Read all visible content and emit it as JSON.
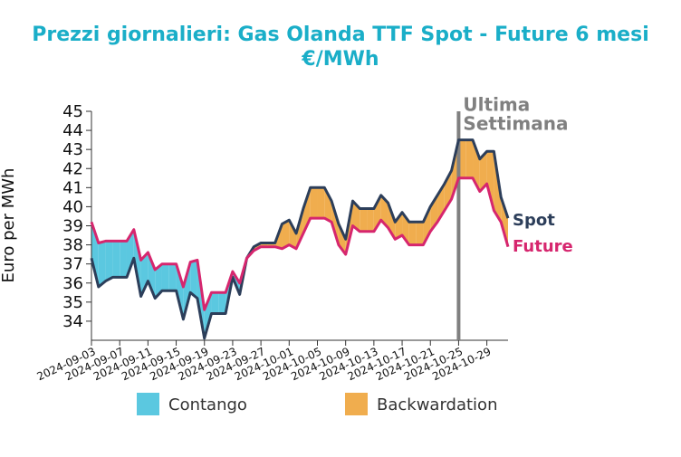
{
  "chart_data": {
    "type": "line",
    "title": "Prezzi giornalieri: Gas Olanda TTF Spot - Future 6 mesi",
    "subtitle": "€/MWh",
    "ylabel": "Euro per MWh",
    "x": [
      "2024-09-03",
      "2024-09-04",
      "2024-09-05",
      "2024-09-06",
      "2024-09-07",
      "2024-09-08",
      "2024-09-09",
      "2024-09-10",
      "2024-09-11",
      "2024-09-12",
      "2024-09-13",
      "2024-09-14",
      "2024-09-15",
      "2024-09-16",
      "2024-09-17",
      "2024-09-18",
      "2024-09-19",
      "2024-09-20",
      "2024-09-21",
      "2024-09-22",
      "2024-09-23",
      "2024-09-24",
      "2024-09-25",
      "2024-09-26",
      "2024-09-27",
      "2024-09-28",
      "2024-09-29",
      "2024-09-30",
      "2024-10-01",
      "2024-10-02",
      "2024-10-03",
      "2024-10-04",
      "2024-10-05",
      "2024-10-06",
      "2024-10-07",
      "2024-10-08",
      "2024-10-09",
      "2024-10-10",
      "2024-10-11",
      "2024-10-12",
      "2024-10-13",
      "2024-10-14",
      "2024-10-15",
      "2024-10-16",
      "2024-10-17",
      "2024-10-18",
      "2024-10-19",
      "2024-10-20",
      "2024-10-21",
      "2024-10-22",
      "2024-10-23",
      "2024-10-24",
      "2024-10-25",
      "2024-10-26",
      "2024-10-27",
      "2024-10-28",
      "2024-10-29",
      "2024-10-30",
      "2024-10-31",
      "2024-11-01"
    ],
    "series": [
      {
        "name": "Spot",
        "color": "#2c3e5a",
        "values": [
          37.3,
          35.8,
          36.1,
          36.3,
          36.3,
          36.3,
          37.3,
          35.3,
          36.1,
          35.2,
          35.6,
          35.6,
          35.6,
          34.1,
          35.5,
          35.2,
          33.1,
          34.4,
          34.4,
          34.4,
          36.3,
          35.4,
          37.3,
          37.9,
          38.1,
          38.1,
          38.1,
          39.1,
          39.3,
          38.6,
          39.9,
          41.0,
          41.0,
          41.0,
          40.3,
          39.1,
          38.3,
          40.3,
          39.9,
          39.9,
          39.9,
          40.6,
          40.2,
          39.2,
          39.7,
          39.2,
          39.2,
          39.2,
          40.0,
          40.6,
          41.2,
          41.9,
          43.5,
          43.5,
          43.5,
          42.5,
          42.9,
          42.9,
          40.5,
          39.4
        ]
      },
      {
        "name": "Future",
        "color": "#d6266e",
        "values": [
          39.2,
          38.1,
          38.2,
          38.2,
          38.2,
          38.2,
          38.8,
          37.2,
          37.6,
          36.7,
          37.0,
          37.0,
          37.0,
          35.8,
          37.1,
          37.2,
          34.6,
          35.5,
          35.5,
          35.5,
          36.6,
          36.0,
          37.3,
          37.7,
          37.9,
          37.9,
          37.9,
          37.8,
          38.0,
          37.8,
          38.6,
          39.4,
          39.4,
          39.4,
          39.2,
          38.0,
          37.5,
          39.0,
          38.7,
          38.7,
          38.7,
          39.3,
          38.9,
          38.3,
          38.5,
          38.0,
          38.0,
          38.0,
          38.7,
          39.2,
          39.8,
          40.4,
          41.5,
          41.5,
          41.5,
          40.8,
          41.2,
          39.8,
          39.2,
          37.9
        ]
      }
    ],
    "legend": [
      {
        "name": "Contango",
        "color": "#5bc8e0"
      },
      {
        "name": "Backwardation",
        "color": "#f0ad4e"
      }
    ],
    "xlim": [
      "2024-09-03",
      "2024-11-01"
    ],
    "xticks": [
      "2024-09-03",
      "2024-09-07",
      "2024-09-11",
      "2024-09-15",
      "2024-09-19",
      "2024-09-23",
      "2024-09-27",
      "2024-10-01",
      "2024-10-05",
      "2024-10-09",
      "2024-10-13",
      "2024-10-17",
      "2024-10-21",
      "2024-10-25",
      "2024-10-29"
    ],
    "ylim": [
      33,
      45
    ],
    "yticks": [
      34,
      35,
      36,
      37,
      38,
      39,
      40,
      41,
      42,
      43,
      44,
      45
    ],
    "annotation": {
      "x": "2024-10-25",
      "lines": [
        "Ultima",
        "Settimana"
      ],
      "color": "#808080"
    }
  }
}
